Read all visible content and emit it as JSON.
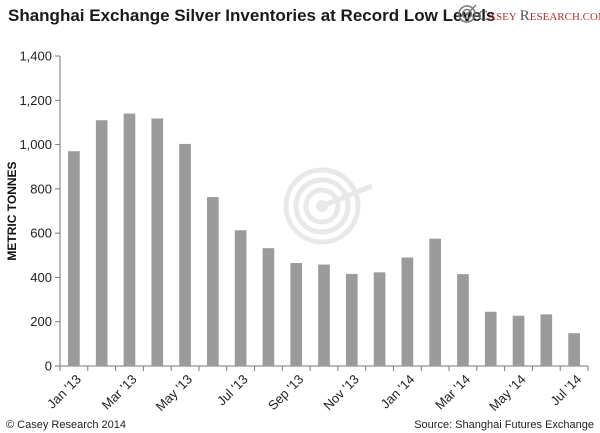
{
  "chart_data": {
    "type": "bar",
    "title": "Shanghai Exchange Silver Inventories at Record Low Levels",
    "ylabel": "METRIC TONNES",
    "xlabel": "",
    "ylim": [
      0,
      1400
    ],
    "yticks": [
      "0",
      "200",
      "400",
      "600",
      "800",
      "1,000",
      "1,200",
      "1,400"
    ],
    "y_tick_values": [
      0,
      200,
      400,
      600,
      800,
      1000,
      1200,
      1400
    ],
    "grid": false,
    "legend": "none",
    "bar_color": "#9b9b9b",
    "categories": [
      "Jan '13",
      "Feb '13",
      "Mar '13",
      "Apr '13",
      "May '13",
      "Jun '13",
      "Jul '13",
      "Aug '13",
      "Sep '13",
      "Oct '13",
      "Nov '13",
      "Dec '13",
      "Jan '14",
      "Feb '14",
      "Mar '14",
      "Apr '14",
      "May '14",
      "Jun '14",
      "Jul '14"
    ],
    "x_tick_labels": [
      "Jan '13",
      "Mar '13",
      "May '13",
      "Jul '13",
      "Sep '13",
      "Nov '13",
      "Jan '14",
      "Mar '14",
      "May '14",
      "Jul '14"
    ],
    "x_tick_indices": [
      0,
      2,
      4,
      6,
      8,
      10,
      12,
      14,
      16,
      18
    ],
    "values": [
      970,
      1110,
      1140,
      1118,
      1003,
      763,
      613,
      532,
      465,
      458,
      416,
      423,
      490,
      575,
      415,
      245,
      227,
      233,
      148
    ]
  },
  "brand": {
    "initial_c": "C",
    "asey": "ASEY",
    "initial_r": "R",
    "esearch": "ESEARCH",
    "domain": ".COM"
  },
  "footer": {
    "copyright": "© Casey Research 2014",
    "source": "Source: Shanghai Futures Exchange"
  },
  "colors": {
    "brand_red": "#b03030",
    "axis": "#777777",
    "watermark": "#e6e6e6"
  }
}
